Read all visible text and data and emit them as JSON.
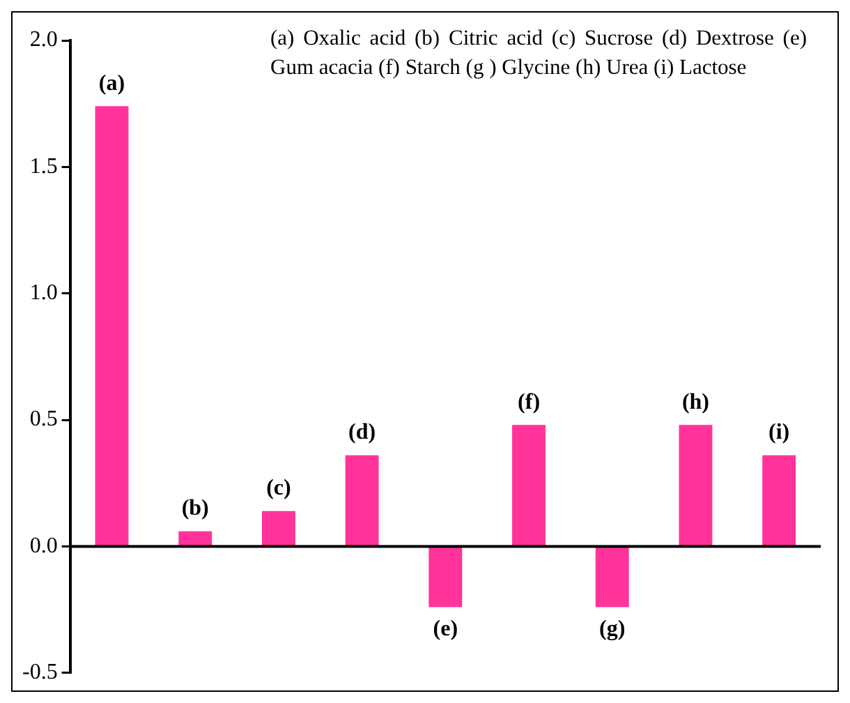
{
  "chart_data": {
    "type": "bar",
    "categories": [
      "(a)",
      "(b)",
      "(c)",
      "(d)",
      "(e)",
      "(f)",
      "(g)",
      "(h)",
      "(i)"
    ],
    "values": [
      1.74,
      0.06,
      0.14,
      0.36,
      -0.24,
      0.48,
      -0.24,
      0.48,
      0.36
    ],
    "color": "#ff3399",
    "ylim": [
      -0.5,
      2.0
    ],
    "yticks": [
      {
        "value": -0.5,
        "label": "-0.5"
      },
      {
        "value": 0,
        "label": "0.0"
      },
      {
        "value": 0.5,
        "label": "0.5"
      },
      {
        "value": 1,
        "label": "1.0"
      },
      {
        "value": 1.5,
        "label": "1.5"
      },
      {
        "value": 2,
        "label": "2.0"
      }
    ],
    "grid": false,
    "ref_lines": [
      {
        "axis": "y",
        "value": 0,
        "color": "#000000",
        "line_style": "solid"
      }
    ],
    "legend": false,
    "annotations": [
      "(a) Oxalic acid (b) Citric acid (c) Sucrose (d) Dextrose (e) Gum acacia (f) Starch (g ) Glycine (h) Urea (i) Lactose"
    ]
  }
}
